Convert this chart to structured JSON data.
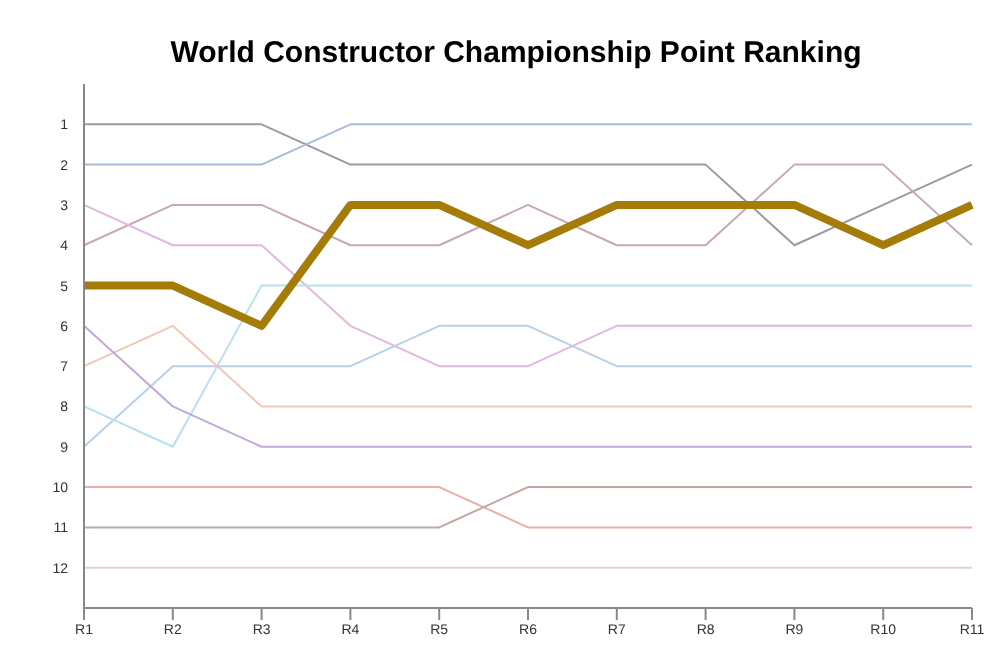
{
  "chart_data": {
    "type": "line",
    "title": "World Constructor Championship Point Ranking",
    "categories": [
      "R1",
      "R2",
      "R3",
      "R4",
      "R5",
      "R6",
      "R7",
      "R8",
      "R9",
      "R10",
      "R11"
    ],
    "ylim": [
      13,
      0
    ],
    "yticks": [
      1,
      2,
      3,
      4,
      5,
      6,
      7,
      8,
      9,
      10,
      11,
      12
    ],
    "marker": "none",
    "legend": false,
    "grid": false,
    "series": [
      {
        "color": "#9a9aa6",
        "values": [
          1,
          1,
          1,
          2,
          2,
          2,
          2,
          2,
          4,
          3,
          2
        ]
      },
      {
        "color": "#a8bcd8",
        "values": [
          2,
          2,
          2,
          1,
          1,
          1,
          1,
          1,
          1,
          1,
          1
        ]
      },
      {
        "color": "#c8a8b8",
        "values": [
          4,
          3,
          3,
          4,
          4,
          3,
          4,
          4,
          2,
          2,
          4
        ]
      },
      {
        "color": "#e0b8e0",
        "values": [
          3,
          4,
          4,
          6,
          7,
          7,
          6,
          6,
          6,
          6,
          6
        ]
      },
      {
        "color": "#b8d0e8",
        "values": [
          9,
          7,
          7,
          7,
          6,
          6,
          7,
          7,
          7,
          7,
          7
        ]
      },
      {
        "color": "#b8e0f0",
        "values": [
          8,
          9,
          5,
          5,
          5,
          5,
          5,
          5,
          5,
          5,
          5
        ]
      },
      {
        "color": "#f0c8b8",
        "values": [
          7,
          6,
          8,
          8,
          8,
          8,
          8,
          8,
          8,
          8,
          8
        ]
      },
      {
        "color": "#c0a8d8",
        "values": [
          6,
          8,
          9,
          9,
          9,
          9,
          9,
          9,
          9,
          9,
          9
        ]
      },
      {
        "color": "#e8b0a8",
        "values": [
          10,
          10,
          10,
          10,
          10,
          11,
          11,
          11,
          11,
          11,
          11
        ]
      },
      {
        "color": "#c0a8a0",
        "values": [
          11,
          11,
          11,
          11,
          11,
          10,
          10,
          10,
          10,
          10,
          10
        ]
      },
      {
        "color": "#e0d0d8",
        "values": [
          12,
          12,
          12,
          12,
          12,
          12,
          12,
          12,
          12,
          12,
          12
        ]
      },
      {
        "color": "#a57c0a",
        "values": [
          5,
          5,
          6,
          3,
          3,
          4,
          3,
          3,
          3,
          4,
          3
        ]
      }
    ]
  }
}
